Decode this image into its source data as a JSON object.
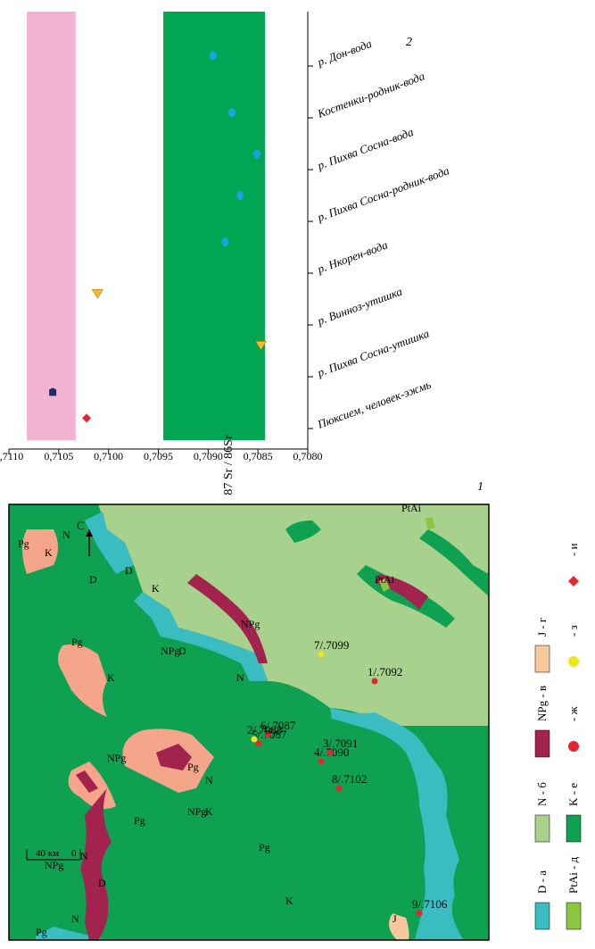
{
  "panel_labels": {
    "chart": "2",
    "map": "1"
  },
  "chart_data": {
    "type": "scatter",
    "ylabel": "87 Sr / 86Sr",
    "ylim": [
      0.708,
      0.711
    ],
    "yticks": [
      "0,7080",
      "0,7085",
      "0,7090",
      "0,7095",
      "0,7100",
      "0,7105",
      "0,7110"
    ],
    "bands": [
      {
        "name": "pink",
        "from": 0.71033,
        "to": 0.71082,
        "color": "#f2b3d1"
      },
      {
        "name": "green",
        "from": 0.70843,
        "to": 0.70945,
        "color": "#00a651"
      }
    ],
    "categories": [
      "Пюксием, человек-эжмь",
      "р. Пихва Сосна-утишка",
      "р. Винноз-утишка",
      "р. Нкорен-вода",
      "р. Пихва Сосна-родник-вода",
      "р. Пихва Сосна-вода",
      "Костенки-родник-вода",
      "р. Дон-вода"
    ],
    "series": [
      {
        "marker": "diamond",
        "color": "#e3262f",
        "points": [
          [
            0.2,
            0.71022
          ]
        ]
      },
      {
        "marker": "pentagon",
        "color": "#1d2a6e",
        "points": [
          [
            0.7,
            0.71056
          ]
        ]
      },
      {
        "marker": "triangle",
        "color": "#f7b82d",
        "points": [
          [
            1.6,
            0.70847
          ],
          [
            2.6,
            0.71011
          ]
        ]
      },
      {
        "marker": "ellipse",
        "color": "#1aa3e0",
        "points": [
          [
            3.6,
            0.70883
          ],
          [
            4.5,
            0.70868
          ],
          [
            5.3,
            0.70851
          ],
          [
            6.1,
            0.70876
          ],
          [
            7.2,
            0.70895
          ]
        ]
      }
    ]
  },
  "map": {
    "compass": "С",
    "scale": {
      "zero": "0",
      "forty": "40 км"
    },
    "formations": [
      {
        "code": "N",
        "color": "#a9d18e"
      },
      {
        "code": "K",
        "color": "#0da151"
      },
      {
        "code": "D",
        "color": "#3bbcc0"
      },
      {
        "code": "Pg",
        "color": "#f4a58a"
      },
      {
        "code": "NPg",
        "color": "#a3234f"
      },
      {
        "code": "J",
        "color": "#f8c79b"
      },
      {
        "code": "PtAi",
        "color": "#8cc63f"
      }
    ],
    "label_texts": [
      "N",
      "K",
      "D",
      "Pg",
      "NPg",
      "J",
      "PtAi"
    ],
    "samples": [
      {
        "label": "9/.7106",
        "color": "#e3262f"
      },
      {
        "label": "8/.7102",
        "color": "#e3262f"
      },
      {
        "label": "4/.7090",
        "color": "#e3262f"
      },
      {
        "label": "3/.7091",
        "color": "#e3262f"
      },
      {
        "label": "5/.7087",
        "color": "#e3262f"
      },
      {
        "label": "6/.7087",
        "color": "#e3262f"
      },
      {
        "label": "2/.7088",
        "color": "#f0e41a"
      },
      {
        "label": "1/.7092",
        "color": "#e3262f"
      },
      {
        "label": "7/.7099",
        "color": "#f0e41a"
      }
    ]
  },
  "legend": [
    {
      "text": "D - а",
      "swatch": "#3bbcc0"
    },
    {
      "text": "PtAi - д",
      "swatch": "#8cc63f"
    },
    {
      "text": "N - б",
      "swatch": "#a9d18e"
    },
    {
      "text": "K - е",
      "swatch": "#0da151"
    },
    {
      "text": "NPg - в",
      "swatch": "#a3234f"
    },
    {
      "text": "- ж",
      "swatch": "#e3262f",
      "marker": "dot"
    },
    {
      "text": "J - г",
      "swatch": "#f8c79b"
    },
    {
      "text": "- з",
      "swatch": "#f0e41a",
      "marker": "dot"
    },
    {
      "text": "- и",
      "swatch": "#e3262f",
      "marker": "diamond"
    }
  ]
}
